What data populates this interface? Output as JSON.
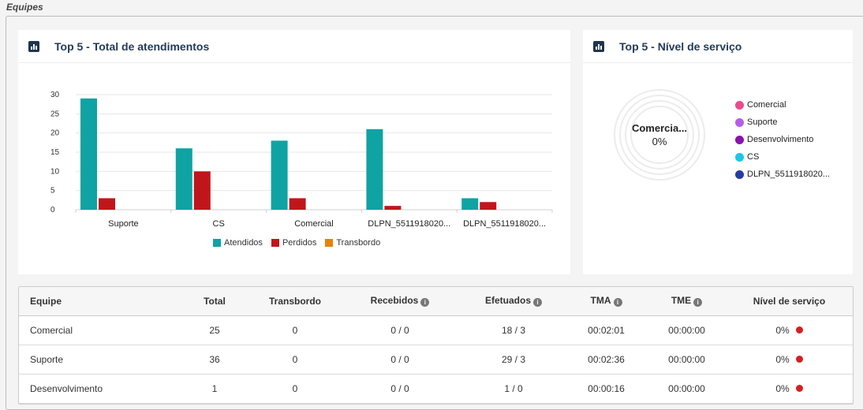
{
  "section_title": "Equipes",
  "bar_card": {
    "title": "Top 5 - Total de atendimentos",
    "chart_data": {
      "type": "bar",
      "categories": [
        "Suporte",
        "CS",
        "Comercial",
        "DLPN_5511918020...",
        "DLPN_5511918020..."
      ],
      "series": [
        {
          "name": "Atendidos",
          "color": "#0fa3a3",
          "values": [
            29,
            16,
            18,
            21,
            3
          ]
        },
        {
          "name": "Perdidos",
          "color": "#c0161b",
          "values": [
            3,
            10,
            3,
            1,
            2
          ]
        },
        {
          "name": "Transbordo",
          "color": "#e8820c",
          "values": [
            0,
            0,
            0,
            0,
            0
          ]
        }
      ],
      "ylim": [
        0,
        30
      ],
      "yticks": [
        0,
        5,
        10,
        15,
        20,
        25,
        30
      ],
      "grid": true,
      "legend": "bottom"
    }
  },
  "donut_card": {
    "title": "Top 5 - Nível de serviço",
    "center_label": "Comercia...",
    "center_value": "0%",
    "legend": [
      {
        "label": "Comercial",
        "color": "#ea4c8f"
      },
      {
        "label": "Suporte",
        "color": "#b45ee8"
      },
      {
        "label": "Desenvolvimento",
        "color": "#8a12ab"
      },
      {
        "label": "CS",
        "color": "#1cc7e6"
      },
      {
        "label": "DLPN_5511918020...",
        "color": "#273da3"
      }
    ]
  },
  "table": {
    "headers": [
      "Equipe",
      "Total",
      "Transbordo",
      "Recebidos",
      "Efetuados",
      "TMA",
      "TME",
      "Nível de serviço"
    ],
    "rows": [
      {
        "equipe": "Comercial",
        "total": "25",
        "transbordo": "0",
        "recebidos": "0 / 0",
        "efetuados": "18 / 3",
        "tma": "00:02:01",
        "tme": "00:00:00",
        "nivel": "0%"
      },
      {
        "equipe": "Suporte",
        "total": "36",
        "transbordo": "0",
        "recebidos": "0 / 0",
        "efetuados": "29 / 3",
        "tma": "00:02:36",
        "tme": "00:00:00",
        "nivel": "0%"
      },
      {
        "equipe": "Desenvolvimento",
        "total": "1",
        "transbordo": "0",
        "recebidos": "0 / 0",
        "efetuados": "1 / 0",
        "tma": "00:00:16",
        "tme": "00:00:00",
        "nivel": "0%"
      }
    ]
  }
}
